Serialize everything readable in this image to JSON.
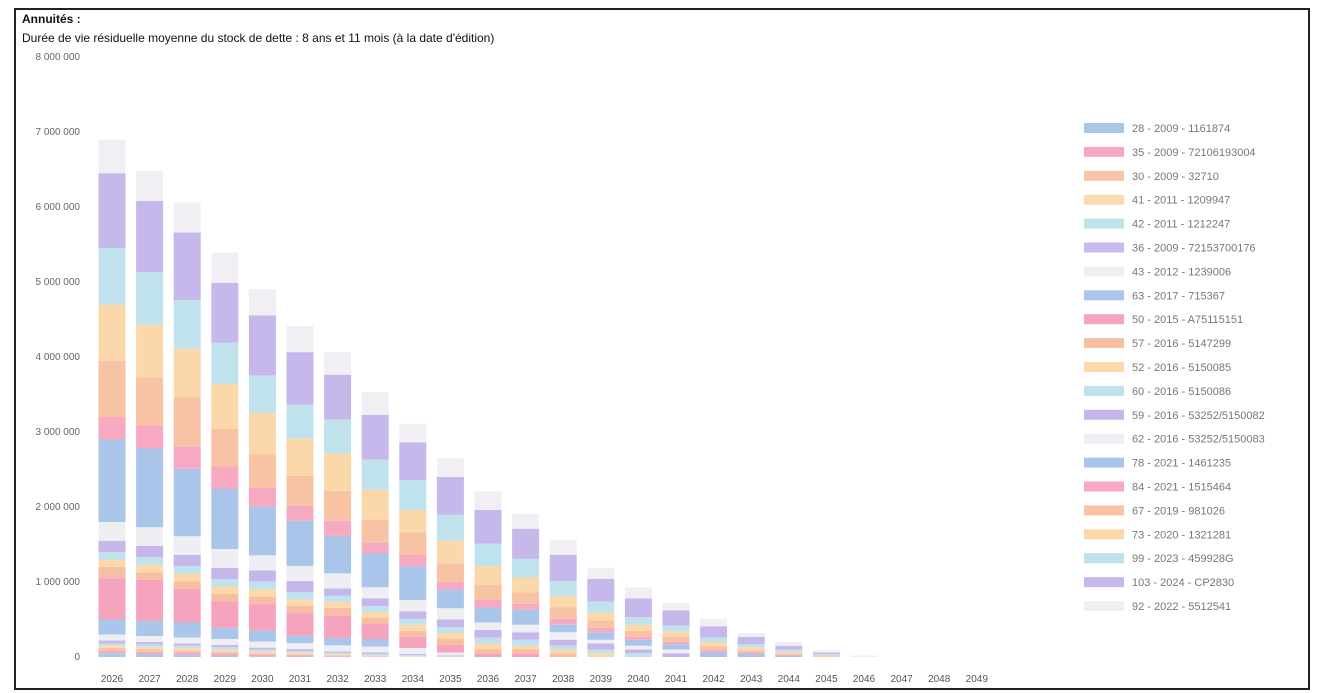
{
  "header": {
    "title": "Annuités :",
    "subtitle": "Durée de vie résiduelle moyenne du stock de dette : 8 ans et 11 mois (à la date d'édition)"
  },
  "chart_data": {
    "type": "bar",
    "stacked": true,
    "title": "Annuités :",
    "subtitle": "Durée de vie résiduelle moyenne du stock de dette : 8 ans et 11 mois (à la date d'édition)",
    "xlabel": "",
    "ylabel": "",
    "ylim": [
      0,
      8000000
    ],
    "yticks": [
      0,
      1000000,
      2000000,
      3000000,
      4000000,
      5000000,
      6000000,
      7000000,
      8000000
    ],
    "ytick_labels": [
      "0",
      "1 000 000",
      "2 000 000",
      "3 000 000",
      "4 000 000",
      "5 000 000",
      "6 000 000",
      "7 000 000",
      "8 000 000"
    ],
    "legend_position": "right",
    "grid": false,
    "categories": [
      "2026",
      "2027",
      "2028",
      "2029",
      "2030",
      "2031",
      "2032",
      "2033",
      "2034",
      "2035",
      "2036",
      "2037",
      "2038",
      "2039",
      "2040",
      "2041",
      "2042",
      "2043",
      "2044",
      "2045",
      "2046",
      "2047",
      "2048",
      "2049"
    ],
    "series": [
      {
        "name": "28 - 2009 - 1161874",
        "color": "#a9c7e6",
        "values": [
          50000,
          40000,
          30000,
          20000,
          10000,
          5000,
          0,
          0,
          0,
          0,
          0,
          0,
          0,
          0,
          0,
          0,
          0,
          0,
          0,
          0,
          0,
          0,
          0,
          0
        ]
      },
      {
        "name": "35 - 2009 - 72106193004",
        "color": "#f7a8c0",
        "values": [
          30000,
          30000,
          30000,
          25000,
          20000,
          15000,
          10000,
          5000,
          0,
          0,
          0,
          0,
          0,
          0,
          0,
          0,
          0,
          0,
          0,
          0,
          0,
          0,
          0,
          0
        ]
      },
      {
        "name": "30 - 2009 - 32710",
        "color": "#f8c4a8",
        "values": [
          40000,
          35000,
          30000,
          25000,
          20000,
          15000,
          10000,
          5000,
          0,
          0,
          0,
          0,
          0,
          0,
          0,
          0,
          0,
          0,
          0,
          0,
          0,
          0,
          0,
          0
        ]
      },
      {
        "name": "41 - 2011 - 1209947",
        "color": "#fbdcae",
        "values": [
          30000,
          30000,
          30000,
          30000,
          25000,
          20000,
          15000,
          10000,
          10000,
          0,
          0,
          0,
          0,
          0,
          0,
          0,
          0,
          0,
          0,
          0,
          0,
          0,
          0,
          0
        ]
      },
      {
        "name": "42 - 2011 - 1212247",
        "color": "#bfe3ea",
        "values": [
          30000,
          30000,
          30000,
          30000,
          25000,
          25000,
          20000,
          20000,
          15000,
          10000,
          0,
          0,
          0,
          0,
          0,
          0,
          0,
          0,
          0,
          0,
          0,
          0,
          0,
          0
        ]
      },
      {
        "name": "36 - 2009 - 72153700176",
        "color": "#c9b9ec",
        "values": [
          40000,
          35000,
          30000,
          30000,
          25000,
          25000,
          20000,
          20000,
          15000,
          10000,
          0,
          0,
          0,
          0,
          0,
          0,
          0,
          0,
          0,
          0,
          0,
          0,
          0,
          0
        ]
      },
      {
        "name": "43 - 2012 - 1239006",
        "color": "#efeff3",
        "values": [
          80000,
          80000,
          80000,
          80000,
          80000,
          80000,
          80000,
          80000,
          80000,
          40000,
          0,
          0,
          0,
          0,
          0,
          0,
          0,
          0,
          0,
          0,
          0,
          0,
          0,
          0
        ]
      },
      {
        "name": "63 - 2017 - 715367",
        "color": "#aac6ea",
        "values": [
          200000,
          200000,
          200000,
          150000,
          150000,
          100000,
          100000,
          100000,
          0,
          0,
          0,
          0,
          0,
          0,
          0,
          0,
          0,
          0,
          0,
          0,
          0,
          0,
          0,
          0
        ]
      },
      {
        "name": "50 - 2015 - A75115151",
        "color": "#f6a3bd",
        "values": [
          550000,
          550000,
          450000,
          350000,
          350000,
          300000,
          300000,
          200000,
          150000,
          100000,
          50000,
          50000,
          0,
          0,
          0,
          0,
          0,
          0,
          0,
          0,
          0,
          0,
          0,
          0
        ]
      },
      {
        "name": "57 - 2016 - 5147299",
        "color": "#f8bea4",
        "values": [
          150000,
          100000,
          100000,
          100000,
          100000,
          100000,
          100000,
          80000,
          80000,
          80000,
          50000,
          50000,
          50000,
          0,
          0,
          0,
          0,
          0,
          0,
          0,
          0,
          0,
          0,
          0
        ]
      },
      {
        "name": "52 - 2016 - 5150085",
        "color": "#fbd9a8",
        "values": [
          100000,
          100000,
          100000,
          100000,
          100000,
          80000,
          80000,
          80000,
          80000,
          80000,
          80000,
          50000,
          50000,
          50000,
          0,
          0,
          0,
          0,
          0,
          0,
          0,
          0,
          0,
          0
        ]
      },
      {
        "name": "60 - 2016 - 5150086",
        "color": "#bfe2ee",
        "values": [
          100000,
          100000,
          100000,
          100000,
          100000,
          100000,
          80000,
          80000,
          80000,
          80000,
          80000,
          80000,
          50000,
          50000,
          50000,
          0,
          0,
          0,
          0,
          0,
          0,
          0,
          0,
          0
        ]
      },
      {
        "name": "59 - 2016 - 53252/5150082",
        "color": "#c6b7ea",
        "values": [
          150000,
          150000,
          150000,
          150000,
          150000,
          150000,
          100000,
          100000,
          100000,
          100000,
          100000,
          100000,
          80000,
          80000,
          50000,
          50000,
          0,
          0,
          0,
          0,
          0,
          0,
          0,
          0
        ]
      },
      {
        "name": "62 - 2016 - 53252/5150083",
        "color": "#efeff3",
        "values": [
          250000,
          250000,
          250000,
          250000,
          200000,
          200000,
          200000,
          150000,
          150000,
          150000,
          100000,
          100000,
          100000,
          50000,
          50000,
          50000,
          0,
          0,
          0,
          0,
          0,
          0,
          0,
          0
        ]
      },
      {
        "name": "78 - 2021 - 1461235",
        "color": "#a9c6ea",
        "values": [
          1100000,
          1050000,
          900000,
          800000,
          650000,
          600000,
          500000,
          450000,
          450000,
          250000,
          200000,
          200000,
          100000,
          100000,
          80000,
          70000,
          60000,
          40000,
          20000,
          0,
          0,
          0,
          0,
          0
        ]
      },
      {
        "name": "84 - 2021 - 1515464",
        "color": "#f6a9c1",
        "values": [
          300000,
          300000,
          300000,
          300000,
          250000,
          200000,
          200000,
          150000,
          150000,
          100000,
          100000,
          80000,
          80000,
          60000,
          40000,
          30000,
          30000,
          20000,
          10000,
          0,
          0,
          0,
          0,
          0
        ]
      },
      {
        "name": "67 - 2019 - 981026",
        "color": "#f8c2a5",
        "values": [
          750000,
          650000,
          650000,
          500000,
          450000,
          400000,
          400000,
          300000,
          300000,
          250000,
          200000,
          150000,
          150000,
          100000,
          80000,
          70000,
          50000,
          30000,
          20000,
          10000,
          0,
          0,
          0,
          0
        ]
      },
      {
        "name": "73 - 2020 - 1321281",
        "color": "#fbd8aa",
        "values": [
          750000,
          700000,
          650000,
          600000,
          550000,
          500000,
          500000,
          400000,
          300000,
          300000,
          250000,
          200000,
          150000,
          100000,
          80000,
          70000,
          60000,
          40000,
          20000,
          10000,
          0,
          0,
          0,
          0
        ]
      },
      {
        "name": "99 - 2023 - 459928G",
        "color": "#bfe2ec",
        "values": [
          750000,
          700000,
          650000,
          550000,
          500000,
          450000,
          450000,
          400000,
          400000,
          350000,
          300000,
          250000,
          200000,
          150000,
          100000,
          80000,
          60000,
          40000,
          30000,
          20000,
          0,
          0,
          0,
          0
        ]
      },
      {
        "name": "103 - 2024 - CP2830",
        "color": "#c7b8ec",
        "values": [
          1000000,
          950000,
          900000,
          800000,
          800000,
          700000,
          600000,
          600000,
          500000,
          500000,
          450000,
          400000,
          350000,
          300000,
          250000,
          200000,
          150000,
          100000,
          50000,
          20000,
          0,
          0,
          0,
          0
        ]
      },
      {
        "name": "92 - 2022 - 5512541",
        "color": "#f1eff4",
        "values": [
          450000,
          400000,
          400000,
          400000,
          350000,
          350000,
          300000,
          300000,
          250000,
          250000,
          250000,
          200000,
          200000,
          150000,
          150000,
          100000,
          100000,
          50000,
          50000,
          30000,
          20000,
          0,
          0,
          0
        ]
      }
    ]
  }
}
